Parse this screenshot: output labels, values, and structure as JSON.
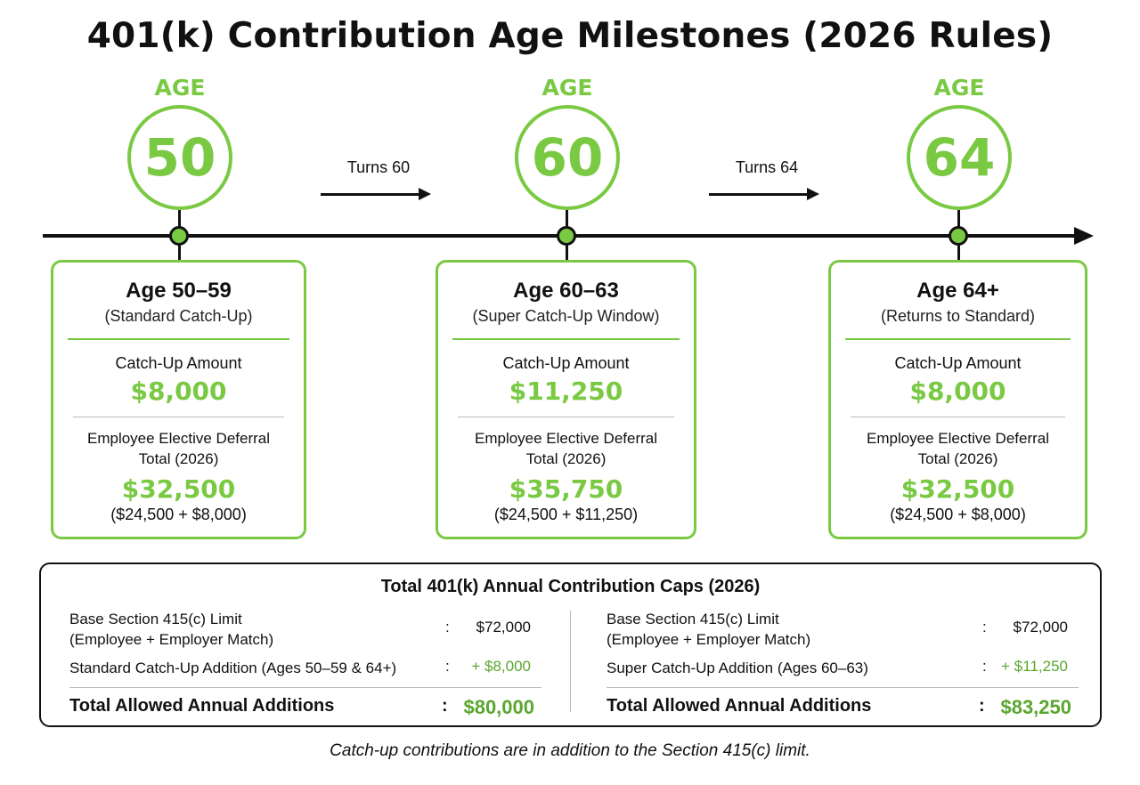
{
  "title": "401(k) Contribution Age Milestones (2026 Rules)",
  "colors": {
    "accent_green": "#7ac943",
    "dark_green": "#5aa62e",
    "line": "#111111"
  },
  "milestones": [
    {
      "label": "AGE",
      "age": "50"
    },
    {
      "label": "AGE",
      "age": "60"
    },
    {
      "label": "AGE",
      "age": "64"
    }
  ],
  "transitions": [
    {
      "label": "Turns 60"
    },
    {
      "label": "Turns 64"
    }
  ],
  "cards": [
    {
      "title": "Age 50–59",
      "subtitle": "(Standard Catch-Up)",
      "catchup_label": "Catch-Up Amount",
      "catchup_amount": "$8,000",
      "deferral_label_1": "Employee Elective Deferral",
      "deferral_label_2": "Total (2026)",
      "deferral_total": "$32,500",
      "formula": "($24,500 + $8,000)"
    },
    {
      "title": "Age 60–63",
      "subtitle": "(Super Catch-Up Window)",
      "catchup_label": "Catch-Up Amount",
      "catchup_amount": "$11,250",
      "deferral_label_1": "Employee Elective Deferral",
      "deferral_label_2": "Total (2026)",
      "deferral_total": "$35,750",
      "formula": "($24,500 + $11,250)"
    },
    {
      "title": "Age 64+",
      "subtitle": "(Returns to Standard)",
      "catchup_label": "Catch-Up Amount",
      "catchup_amount": "$8,000",
      "deferral_label_1": "Employee Elective Deferral",
      "deferral_label_2": "Total (2026)",
      "deferral_total": "$32,500",
      "formula": "($24,500 + $8,000)"
    }
  ],
  "caps": {
    "title": "Total 401(k) Annual Contribution Caps (2026)",
    "left": {
      "base_label_1": "Base Section 415(c) Limit",
      "base_label_2": "(Employee + Employer Match)",
      "base_colon": ":",
      "base_value": "$72,000",
      "addition_label": "Standard Catch-Up Addition (Ages 50–59 & 64+)",
      "addition_colon": ":",
      "addition_value": "+ $8,000",
      "total_label": "Total Allowed Annual Additions",
      "total_colon": ":",
      "total_value": "$80,000"
    },
    "right": {
      "base_label_1": "Base Section 415(c) Limit",
      "base_label_2": "(Employee + Employer Match)",
      "base_colon": ":",
      "base_value": "$72,000",
      "addition_label": "Super Catch-Up Addition (Ages 60–63)",
      "addition_colon": ":",
      "addition_value": "+ $11,250",
      "total_label": "Total Allowed Annual Additions",
      "total_colon": ":",
      "total_value": "$83,250"
    }
  },
  "footnote": "Catch-up contributions are in addition to the Section 415(c) limit."
}
